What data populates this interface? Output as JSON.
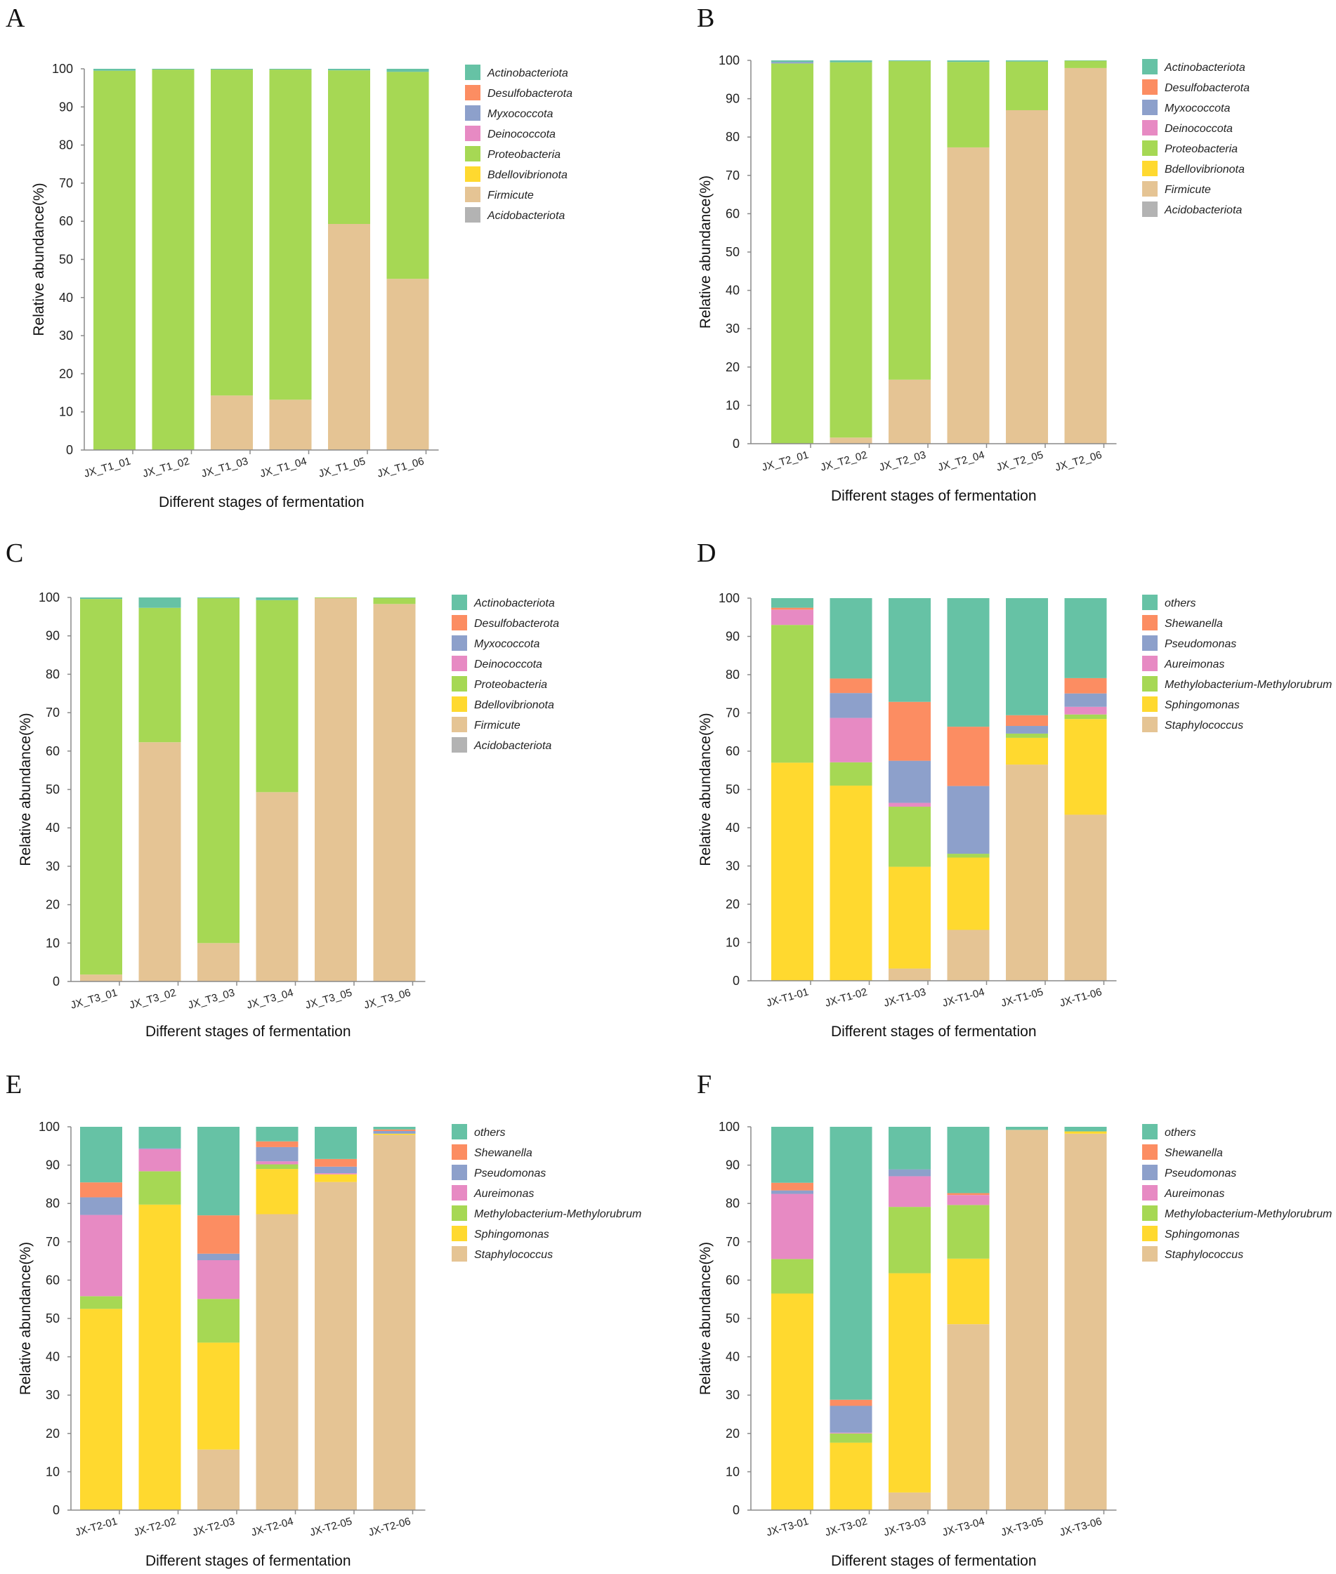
{
  "colors": {
    "Actinobacteriota": "#66c2a5",
    "Desulfobacterota": "#fc8d62",
    "Myxococcota": "#8da0cb",
    "Deinococcota": "#e78ac3",
    "Proteobacteria": "#a6d854",
    "Bdellovibrionota": "#ffd92f",
    "Firmicute": "#e5c494",
    "Acidobacteriota": "#b3b3b3",
    "others": "#66c2a5",
    "Shewanella": "#fc8d62",
    "Pseudomonas": "#8da0cb",
    "Aureimonas": "#e78ac3",
    "Methylobacterium-Methylorubrum": "#a6d854",
    "Sphingomonas": "#ffd92f",
    "Staphylococcus": "#e5c494"
  },
  "chart_data": [
    {
      "panel": "A",
      "type": "bar",
      "stacked": true,
      "ylabel": "Relative abundance(%)",
      "xlabel": "Different stages of fermentation",
      "ylim": [
        0,
        100
      ],
      "yticks": [
        0,
        10,
        20,
        30,
        40,
        50,
        60,
        70,
        80,
        90,
        100
      ],
      "categories": [
        "JX_T1_01",
        "JX_T1_02",
        "JX_T1_03",
        "JX_T1_04",
        "JX_T1_05",
        "JX_T1_06"
      ],
      "legend": [
        "Actinobacteriota",
        "Desulfobacterota",
        "Myxococcota",
        "Deinococcota",
        "Proteobacteria",
        "Bdellovibrionota",
        "Firmicute",
        "Acidobacteriota"
      ],
      "series": [
        {
          "name": "Firmicute",
          "values": [
            0,
            0,
            14.3,
            13.2,
            59.3,
            44.9
          ]
        },
        {
          "name": "Proteobacteria",
          "values": [
            99.5,
            99.8,
            85.5,
            86.6,
            40.3,
            54.3
          ]
        },
        {
          "name": "Actinobacteriota",
          "values": [
            0.5,
            0.2,
            0.2,
            0.2,
            0.4,
            0.8
          ]
        }
      ]
    },
    {
      "panel": "B",
      "type": "bar",
      "stacked": true,
      "ylabel": "Relative abundance(%)",
      "xlabel": "Different stages of fermentation",
      "ylim": [
        0,
        100
      ],
      "yticks": [
        0,
        10,
        20,
        30,
        40,
        50,
        60,
        70,
        80,
        90,
        100
      ],
      "categories": [
        "JX_T2_01",
        "JX_T2_02",
        "JX_T2_03",
        "JX_T2_04",
        "JX_T2_05",
        "JX_T2_06"
      ],
      "legend": [
        "Actinobacteriota",
        "Desulfobacterota",
        "Myxococcota",
        "Deinococcota",
        "Proteobacteria",
        "Bdellovibrionota",
        "Firmicute",
        "Acidobacteriota"
      ],
      "series": [
        {
          "name": "Firmicute",
          "values": [
            0,
            1.6,
            16.7,
            77.3,
            87.0,
            98.0
          ]
        },
        {
          "name": "Proteobacteria",
          "values": [
            99.2,
            97.9,
            83.1,
            22.3,
            12.7,
            1.9
          ]
        },
        {
          "name": "Myxococcota",
          "values": [
            0.4,
            0,
            0,
            0,
            0,
            0
          ]
        },
        {
          "name": "Actinobacteriota",
          "values": [
            0.4,
            0.5,
            0.2,
            0.4,
            0.3,
            0.1
          ]
        }
      ]
    },
    {
      "panel": "C",
      "type": "bar",
      "stacked": true,
      "ylabel": "Relative abundance(%)",
      "xlabel": "Different stages of fermentation",
      "ylim": [
        0,
        100
      ],
      "yticks": [
        0,
        10,
        20,
        30,
        40,
        50,
        60,
        70,
        80,
        90,
        100
      ],
      "categories": [
        "JX_T3_01",
        "JX_T3_02",
        "JX_T3_03",
        "JX_T3_04",
        "JX_T3_05",
        "JX_T3_06"
      ],
      "legend": [
        "Actinobacteriota",
        "Desulfobacterota",
        "Myxococcota",
        "Deinococcota",
        "Proteobacteria",
        "Bdellovibrionota",
        "Firmicute",
        "Acidobacteriota"
      ],
      "series": [
        {
          "name": "Firmicute",
          "values": [
            1.8,
            62.3,
            10.0,
            49.3,
            99.8,
            98.3
          ]
        },
        {
          "name": "Proteobacteria",
          "values": [
            97.8,
            35.0,
            89.8,
            50.0,
            0.2,
            1.6
          ]
        },
        {
          "name": "Actinobacteriota",
          "values": [
            0.4,
            2.7,
            0.2,
            0.7,
            0,
            0.1
          ]
        }
      ]
    },
    {
      "panel": "D",
      "type": "bar",
      "stacked": true,
      "ylabel": "Relative abundance(%)",
      "xlabel": "Different stages of fermentation",
      "ylim": [
        0,
        100
      ],
      "yticks": [
        0,
        10,
        20,
        30,
        40,
        50,
        60,
        70,
        80,
        90,
        100
      ],
      "categories": [
        "JX-T1-01",
        "JX-T1-02",
        "JX-T1-03",
        "JX-T1-04",
        "JX-T1-05",
        "JX-T1-06"
      ],
      "legend": [
        "others",
        "Shewanella",
        "Pseudomonas",
        "Aureimonas",
        "Methylobacterium-Methylorubrum",
        "Sphingomonas",
        "Staphylococcus"
      ],
      "series": [
        {
          "name": "Staphylococcus",
          "values": [
            0,
            0,
            3.2,
            13.3,
            56.5,
            43.4
          ]
        },
        {
          "name": "Sphingomonas",
          "values": [
            57.0,
            51.0,
            26.6,
            18.9,
            7.0,
            25.0
          ]
        },
        {
          "name": "Methylobacterium-Methylorubrum",
          "values": [
            36.0,
            6.1,
            15.7,
            1.0,
            1.1,
            1.2
          ]
        },
        {
          "name": "Aureimonas",
          "values": [
            4.0,
            11.6,
            1.0,
            0,
            0,
            2.0
          ]
        },
        {
          "name": "Pseudomonas",
          "values": [
            0,
            6.5,
            11.0,
            17.7,
            2.0,
            3.5
          ]
        },
        {
          "name": "Shewanella",
          "values": [
            0.5,
            3.8,
            15.4,
            15.5,
            2.8,
            4.0
          ]
        },
        {
          "name": "others",
          "values": [
            2.5,
            21.0,
            27.1,
            33.6,
            30.6,
            20.9
          ]
        }
      ]
    },
    {
      "panel": "E",
      "type": "bar",
      "stacked": true,
      "ylabel": "Relative abundance(%)",
      "xlabel": "Different stages of fermentation",
      "ylim": [
        0,
        100
      ],
      "yticks": [
        0,
        10,
        20,
        30,
        40,
        50,
        60,
        70,
        80,
        90,
        100
      ],
      "categories": [
        "JX-T2-01",
        "JX-T2-02",
        "JX-T2-03",
        "JX-T2-04",
        "JX-T2-05",
        "JX-T2-06"
      ],
      "legend": [
        "others",
        "Shewanella",
        "Pseudomonas",
        "Aureimonas",
        "Methylobacterium-Methylorubrum",
        "Sphingomonas",
        "Staphylococcus"
      ],
      "series": [
        {
          "name": "Staphylococcus",
          "values": [
            0,
            0,
            15.8,
            77.2,
            85.6,
            97.9
          ]
        },
        {
          "name": "Sphingomonas",
          "values": [
            52.5,
            79.7,
            27.9,
            11.8,
            2.0,
            0.3
          ]
        },
        {
          "name": "Methylobacterium-Methylorubrum",
          "values": [
            3.3,
            8.7,
            11.4,
            1.2,
            0,
            0
          ]
        },
        {
          "name": "Aureimonas",
          "values": [
            21.2,
            5.8,
            10.1,
            0.8,
            0.3,
            0
          ]
        },
        {
          "name": "Pseudomonas",
          "values": [
            4.6,
            0.2,
            1.7,
            3.7,
            1.7,
            0.7
          ]
        },
        {
          "name": "Shewanella",
          "values": [
            3.9,
            0,
            10.0,
            1.5,
            2.0,
            0.4
          ]
        },
        {
          "name": "others",
          "values": [
            14.5,
            5.6,
            23.1,
            3.8,
            8.4,
            0.7
          ]
        }
      ]
    },
    {
      "panel": "F",
      "type": "bar",
      "stacked": true,
      "ylabel": "Relative abundance(%)",
      "xlabel": "Different stages of fermentation",
      "ylim": [
        0,
        100
      ],
      "yticks": [
        0,
        10,
        20,
        30,
        40,
        50,
        60,
        70,
        80,
        90,
        100
      ],
      "categories": [
        "JX-T3-01",
        "JX-T3-02",
        "JX-T3-03",
        "JX-T3-04",
        "JX-T3-05",
        "JX-T3-06"
      ],
      "legend": [
        "others",
        "Shewanella",
        "Pseudomonas",
        "Aureimonas",
        "Methylobacterium-Methylorubrum",
        "Sphingomonas",
        "Staphylococcus"
      ],
      "series": [
        {
          "name": "Staphylococcus",
          "values": [
            0,
            0,
            4.6,
            48.5,
            99.2,
            98.2
          ]
        },
        {
          "name": "Sphingomonas",
          "values": [
            56.5,
            17.6,
            57.2,
            17.1,
            0,
            0.6
          ]
        },
        {
          "name": "Methylobacterium-Methylorubrum",
          "values": [
            9.0,
            2.4,
            17.3,
            14.0,
            0,
            0
          ]
        },
        {
          "name": "Aureimonas",
          "values": [
            17.0,
            0.2,
            8.0,
            2.6,
            0,
            0
          ]
        },
        {
          "name": "Pseudomonas",
          "values": [
            0.9,
            7.0,
            1.8,
            0,
            0,
            0
          ]
        },
        {
          "name": "Shewanella",
          "values": [
            2.0,
            1.6,
            0,
            0.5,
            0,
            0
          ]
        },
        {
          "name": "others",
          "values": [
            14.6,
            71.2,
            11.1,
            17.3,
            0.8,
            1.2
          ]
        }
      ]
    }
  ]
}
